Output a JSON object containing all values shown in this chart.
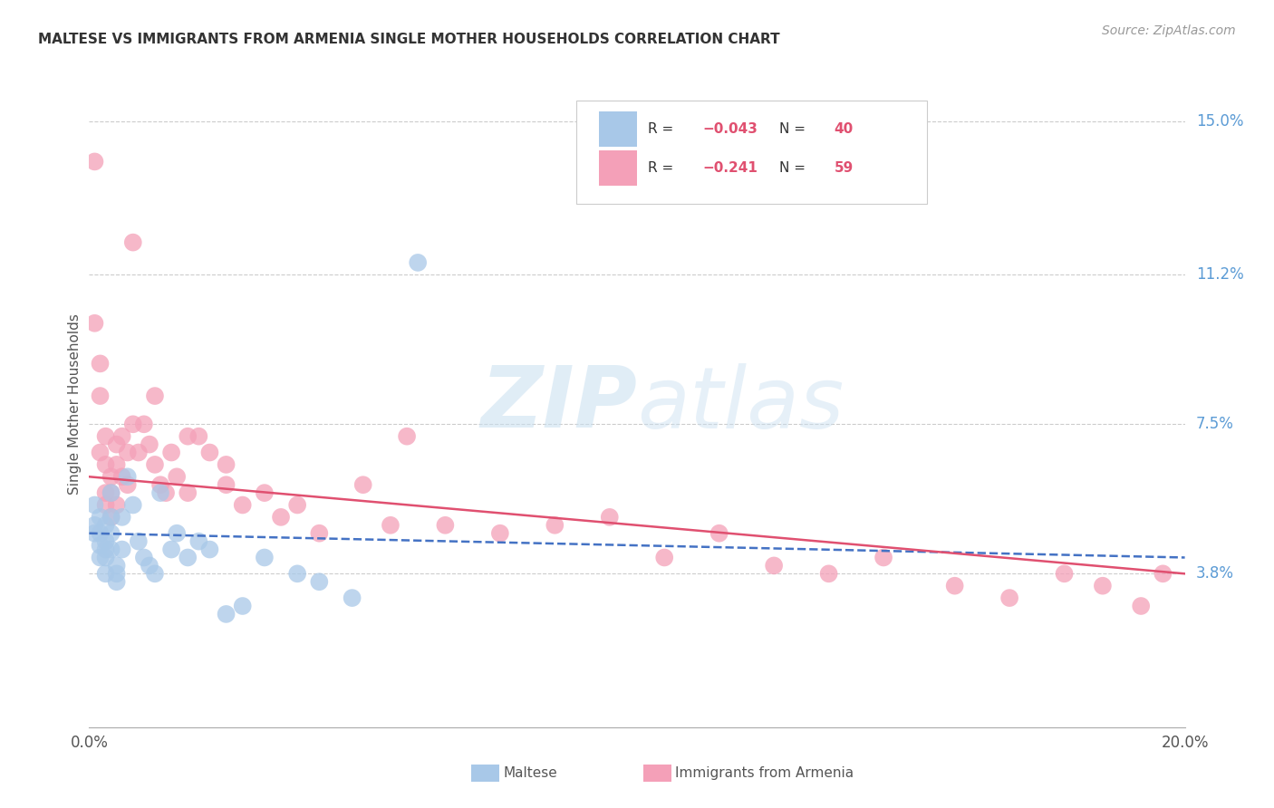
{
  "title": "MALTESE VS IMMIGRANTS FROM ARMENIA SINGLE MOTHER HOUSEHOLDS CORRELATION CHART",
  "source": "Source: ZipAtlas.com",
  "ylabel": "Single Mother Households",
  "xlim": [
    0.0,
    0.2
  ],
  "ylim": [
    0.0,
    0.16
  ],
  "ytick_positions": [
    0.038,
    0.075,
    0.112,
    0.15
  ],
  "ytick_labels": [
    "3.8%",
    "7.5%",
    "11.2%",
    "15.0%"
  ],
  "blue_color": "#a8c8e8",
  "pink_color": "#f4a0b8",
  "blue_line_color": "#4472c4",
  "pink_line_color": "#e05070",
  "legend_blue_R": "-0.043",
  "legend_blue_N": "40",
  "legend_pink_R": "-0.241",
  "legend_pink_N": "59",
  "watermark_zip": "ZIP",
  "watermark_atlas": "atlas",
  "background_color": "#ffffff",
  "grid_color": "#cccccc",
  "right_label_color": "#5b9bd5",
  "title_color": "#333333",
  "source_color": "#999999",
  "ylabel_color": "#555555",
  "maltese_x": [
    0.001,
    0.001,
    0.001,
    0.002,
    0.002,
    0.002,
    0.002,
    0.003,
    0.003,
    0.003,
    0.003,
    0.003,
    0.004,
    0.004,
    0.004,
    0.004,
    0.005,
    0.005,
    0.005,
    0.006,
    0.006,
    0.007,
    0.008,
    0.009,
    0.01,
    0.011,
    0.012,
    0.013,
    0.015,
    0.016,
    0.018,
    0.02,
    0.022,
    0.025,
    0.028,
    0.032,
    0.038,
    0.042,
    0.048,
    0.06
  ],
  "maltese_y": [
    0.055,
    0.05,
    0.048,
    0.052,
    0.048,
    0.045,
    0.042,
    0.05,
    0.046,
    0.044,
    0.042,
    0.038,
    0.058,
    0.052,
    0.048,
    0.044,
    0.04,
    0.038,
    0.036,
    0.052,
    0.044,
    0.062,
    0.055,
    0.046,
    0.042,
    0.04,
    0.038,
    0.058,
    0.044,
    0.048,
    0.042,
    0.046,
    0.044,
    0.028,
    0.03,
    0.042,
    0.038,
    0.036,
    0.032,
    0.115
  ],
  "armenia_x": [
    0.001,
    0.001,
    0.002,
    0.002,
    0.002,
    0.003,
    0.003,
    0.003,
    0.003,
    0.004,
    0.004,
    0.004,
    0.005,
    0.005,
    0.005,
    0.006,
    0.006,
    0.007,
    0.007,
    0.008,
    0.009,
    0.01,
    0.011,
    0.012,
    0.013,
    0.014,
    0.015,
    0.016,
    0.018,
    0.02,
    0.022,
    0.025,
    0.028,
    0.032,
    0.038,
    0.042,
    0.05,
    0.058,
    0.065,
    0.075,
    0.085,
    0.095,
    0.105,
    0.115,
    0.125,
    0.135,
    0.145,
    0.158,
    0.168,
    0.178,
    0.185,
    0.192,
    0.196,
    0.008,
    0.012,
    0.018,
    0.025,
    0.035,
    0.055
  ],
  "armenia_y": [
    0.14,
    0.1,
    0.09,
    0.082,
    0.068,
    0.072,
    0.065,
    0.058,
    0.055,
    0.062,
    0.058,
    0.052,
    0.07,
    0.065,
    0.055,
    0.072,
    0.062,
    0.068,
    0.06,
    0.075,
    0.068,
    0.075,
    0.07,
    0.065,
    0.06,
    0.058,
    0.068,
    0.062,
    0.058,
    0.072,
    0.068,
    0.06,
    0.055,
    0.058,
    0.055,
    0.048,
    0.06,
    0.072,
    0.05,
    0.048,
    0.05,
    0.052,
    0.042,
    0.048,
    0.04,
    0.038,
    0.042,
    0.035,
    0.032,
    0.038,
    0.035,
    0.03,
    0.038,
    0.12,
    0.082,
    0.072,
    0.065,
    0.052,
    0.05
  ],
  "blue_trend_x": [
    0.0,
    0.2
  ],
  "blue_trend_y": [
    0.048,
    0.042
  ],
  "pink_trend_x": [
    0.0,
    0.2
  ],
  "pink_trend_y": [
    0.062,
    0.038
  ]
}
